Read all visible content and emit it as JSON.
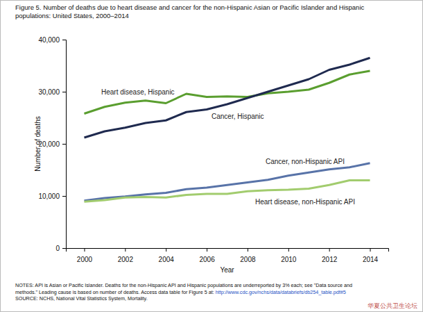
{
  "chart_data": {
    "type": "line",
    "title": [
      "Figure 5. Number of deaths due to heart disease and cancer for the non-Hispanic Asian or Pacific Islander and Hispanic",
      "populations: United States, 2000–2014"
    ],
    "x_label": "Year",
    "y_label": "Number of deaths",
    "x": [
      2000,
      2001,
      2002,
      2003,
      2004,
      2005,
      2006,
      2007,
      2008,
      2009,
      2010,
      2011,
      2012,
      2013,
      2014
    ],
    "series": [
      {
        "name": "Heart disease, Hispanic",
        "color": "#5a9e2f",
        "values": [
          25800,
          27100,
          27900,
          28300,
          27800,
          29600,
          29000,
          29100,
          29000,
          29700,
          30000,
          30400,
          31700,
          33300,
          34000
        ]
      },
      {
        "name": "Cancer, Hispanic",
        "color": "#1f2a4f",
        "values": [
          21200,
          22400,
          23100,
          24000,
          24500,
          26100,
          26600,
          27600,
          28800,
          30000,
          31200,
          32400,
          34200,
          35200,
          36500
        ]
      },
      {
        "name": "Cancer, non-Hispanic API",
        "color": "#5873a8",
        "values": [
          9100,
          9600,
          9900,
          10300,
          10600,
          11300,
          11600,
          12100,
          12600,
          13100,
          13900,
          14500,
          15100,
          15500,
          16300
        ]
      },
      {
        "name": "Heart disease, non-Hispanic API",
        "color": "#a2cc6e",
        "values": [
          8900,
          9200,
          9700,
          9800,
          9700,
          10200,
          10400,
          10400,
          10900,
          11100,
          11200,
          11400,
          12100,
          13000,
          13000
        ]
      }
    ],
    "xlim": [
      1999.1,
      2014.9
    ],
    "xticks": [
      2000,
      2002,
      2004,
      2006,
      2008,
      2010,
      2012,
      2014
    ],
    "ylim": [
      0,
      40000
    ],
    "yticks": [
      0,
      {
        "value": 10000,
        "label": "10,000"
      },
      {
        "value": 20000,
        "label": "20,000"
      },
      {
        "value": 30000,
        "label": "30,000"
      },
      {
        "value": 40000,
        "label": "40,000"
      }
    ],
    "notes": [
      "NOTES: API is Asian or Pacific Islander. Deaths for the non-Hispanic API and Hispanic populations are underreported by 3% each; see \"Data source and",
      "methods.\" Leading cause is based on number of deaths. Access data table for Figure 5 at: "
    ],
    "notes_url": "http://www.cdc.gov/nchs/data/databriefs/db254_table.pdf#5",
    "source": "SOURCE: NCHS, National Vital Statistics System, Mortality.",
    "watermark": "华夏公共卫生论坛"
  }
}
